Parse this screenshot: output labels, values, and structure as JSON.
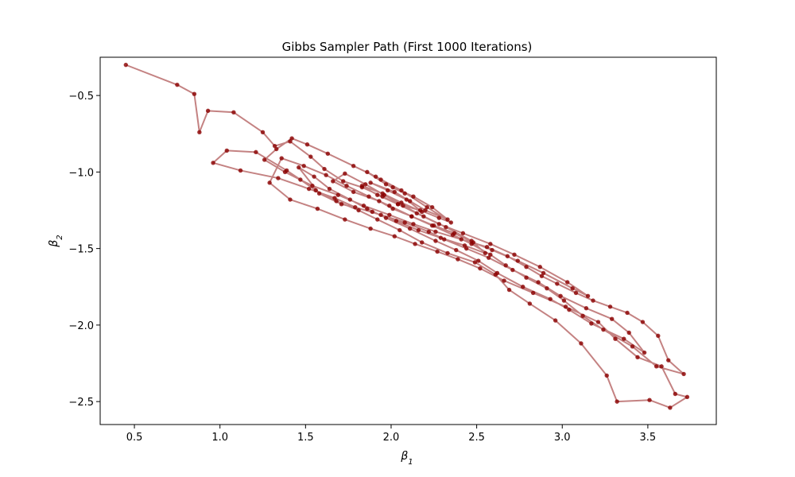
{
  "chart_data": {
    "type": "line",
    "title": "Gibbs Sampler Path (First 1000 Iterations)",
    "xlabel": "β",
    "xlabel_sub": "1",
    "ylabel": "β",
    "ylabel_sub": "2",
    "xlim": [
      0.3,
      3.9
    ],
    "ylim": [
      -2.65,
      -0.25
    ],
    "xticks": [
      0.5,
      1.0,
      1.5,
      2.0,
      2.5,
      3.0,
      3.5
    ],
    "xtick_labels": [
      "0.5",
      "1.0",
      "1.5",
      "2.0",
      "2.5",
      "3.0",
      "3.5"
    ],
    "yticks": [
      -2.5,
      -2.0,
      -1.5,
      -1.0,
      -0.5
    ],
    "ytick_labels": [
      "−2.5",
      "−2.0",
      "−1.5",
      "−1.0",
      "−0.5"
    ],
    "line_color": "#b05858",
    "marker_color": "#8b0000",
    "grid": false,
    "legend": "none",
    "n_iterations": 1000,
    "series": [
      {
        "x": [
          0.45,
          0.75,
          0.85,
          0.88,
          0.93,
          1.08,
          1.25,
          1.32,
          1.41,
          1.53,
          1.61,
          1.72,
          1.83,
          1.95,
          2.04,
          2.17,
          2.28,
          2.35,
          2.21,
          2.06,
          1.91,
          1.78,
          1.63,
          1.51,
          1.42,
          1.33,
          1.26,
          1.38,
          1.54,
          1.69,
          1.84,
          1.99,
          2.13,
          2.26,
          2.41,
          2.56,
          2.68,
          2.79,
          2.88,
          2.97,
          3.08,
          3.18,
          3.28,
          3.38,
          3.47,
          3.56,
          3.62,
          3.71,
          3.55,
          3.41,
          3.24,
          3.12,
          3.01,
          2.91,
          2.79,
          2.67,
          2.58,
          2.47,
          2.36,
          2.24,
          2.12,
          1.99,
          1.87,
          1.74,
          1.62,
          1.49,
          1.36,
          1.29,
          1.41,
          1.57,
          1.73,
          1.88,
          2.02,
          2.14,
          2.27,
          2.39,
          2.52,
          2.66,
          2.83,
          3.02,
          3.21,
          3.31,
          3.44,
          3.58,
          3.66,
          3.73,
          3.63,
          3.51,
          3.32,
          3.26,
          3.11,
          2.96,
          2.81,
          2.69,
          2.61,
          2.49,
          2.33,
          2.18,
          2.05,
          1.92,
          1.81,
          1.68,
          1.56,
          1.47,
          1.39,
          1.21,
          1.04,
          0.96,
          1.12,
          1.34,
          1.52,
          1.67,
          1.79,
          1.94,
          2.08,
          2.22,
          2.31,
          2.44,
          2.57,
          2.71,
          2.86,
          2.99,
          3.14,
          3.29,
          3.39,
          3.48,
          3.36,
          3.17,
          3.04,
          2.93,
          2.77,
          2.62,
          2.51,
          2.38,
          2.26,
          2.11,
          1.97,
          1.86,
          1.76,
          1.64,
          1.55,
          1.46,
          1.58,
          1.71,
          1.89,
          2.03,
          2.16,
          2.29,
          2.43,
          2.55,
          2.47,
          2.32,
          2.19,
          2.07,
          1.96,
          1.85,
          1.73,
          1.66,
          1.78,
          1.93,
          2.01,
          2.12,
          2.25,
          2.37,
          2.48,
          2.59,
          2.74,
          2.89,
          3.06,
          3.15,
          3.03,
          2.87,
          2.72,
          2.58,
          2.42,
          2.28,
          2.15,
          2.04,
          1.92,
          1.83,
          1.95,
          2.06,
          2.18,
          2.09,
          1.98,
          1.88,
          2.02,
          2.11,
          2.2,
          2.33,
          2.24,
          2.13,
          2.01,
          1.94,
          1.86,
          1.97,
          2.08
        ],
        "y": [
          -0.3,
          -0.43,
          -0.49,
          -0.74,
          -0.6,
          -0.61,
          -0.74,
          -0.83,
          -0.8,
          -0.9,
          -0.98,
          -1.06,
          -1.1,
          -1.16,
          -1.21,
          -1.25,
          -1.3,
          -1.33,
          -1.23,
          -1.12,
          -1.03,
          -0.96,
          -0.88,
          -0.82,
          -0.78,
          -0.85,
          -0.92,
          -1.0,
          -1.09,
          -1.15,
          -1.22,
          -1.28,
          -1.34,
          -1.39,
          -1.44,
          -1.49,
          -1.55,
          -1.62,
          -1.68,
          -1.73,
          -1.79,
          -1.84,
          -1.88,
          -1.92,
          -1.98,
          -2.07,
          -2.23,
          -2.32,
          -2.27,
          -2.14,
          -2.03,
          -1.94,
          -1.84,
          -1.76,
          -1.69,
          -1.61,
          -1.54,
          -1.47,
          -1.41,
          -1.35,
          -1.29,
          -1.22,
          -1.16,
          -1.09,
          -1.02,
          -0.96,
          -0.91,
          -1.07,
          -1.18,
          -1.24,
          -1.31,
          -1.37,
          -1.42,
          -1.47,
          -1.52,
          -1.57,
          -1.63,
          -1.71,
          -1.79,
          -1.88,
          -1.98,
          -2.09,
          -2.21,
          -2.27,
          -2.45,
          -2.47,
          -2.54,
          -2.49,
          -2.5,
          -2.33,
          -2.12,
          -1.97,
          -1.86,
          -1.77,
          -1.67,
          -1.59,
          -1.53,
          -1.46,
          -1.38,
          -1.31,
          -1.25,
          -1.19,
          -1.12,
          -1.05,
          -0.99,
          -0.87,
          -0.86,
          -0.94,
          -0.99,
          -1.04,
          -1.11,
          -1.17,
          -1.23,
          -1.28,
          -1.33,
          -1.39,
          -1.44,
          -1.5,
          -1.56,
          -1.64,
          -1.72,
          -1.81,
          -1.89,
          -1.96,
          -2.05,
          -2.18,
          -2.09,
          -1.99,
          -1.9,
          -1.83,
          -1.75,
          -1.66,
          -1.58,
          -1.51,
          -1.45,
          -1.37,
          -1.3,
          -1.24,
          -1.18,
          -1.11,
          -1.03,
          -0.97,
          -1.14,
          -1.21,
          -1.26,
          -1.32,
          -1.38,
          -1.43,
          -1.48,
          -1.53,
          -1.45,
          -1.36,
          -1.29,
          -1.22,
          -1.15,
          -1.08,
          -1.01,
          -1.06,
          -1.13,
          -1.19,
          -1.24,
          -1.29,
          -1.35,
          -1.4,
          -1.46,
          -1.51,
          -1.58,
          -1.66,
          -1.76,
          -1.81,
          -1.72,
          -1.62,
          -1.54,
          -1.47,
          -1.4,
          -1.34,
          -1.27,
          -1.21,
          -1.15,
          -1.09,
          -1.14,
          -1.2,
          -1.26,
          -1.18,
          -1.12,
          -1.07,
          -1.13,
          -1.19,
          -1.25,
          -1.31,
          -1.23,
          -1.16,
          -1.1,
          -1.05,
          -1.0,
          -1.08,
          -1.14
        ]
      }
    ]
  }
}
